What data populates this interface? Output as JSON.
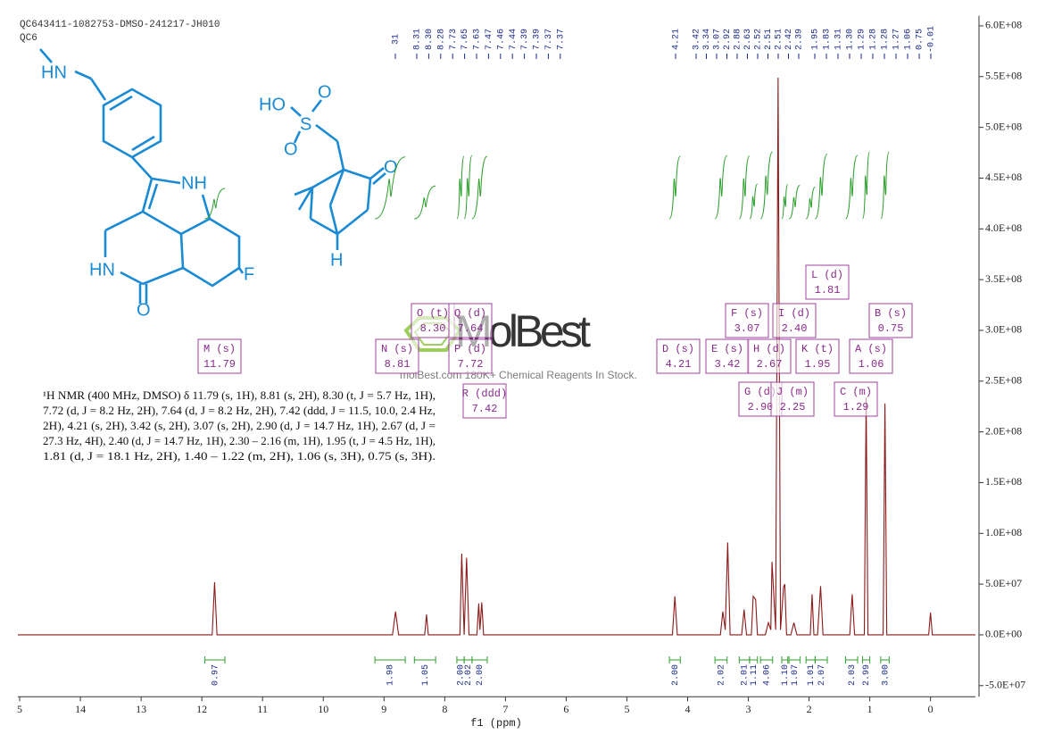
{
  "header": {
    "lines": [
      "QC643411-1082753-DMSO-241217-JH010",
      "QC6"
    ]
  },
  "watermark": {
    "brand": "MolBest",
    "tagline": "molBest.com 180K+ Chemical Reagents In Stock."
  },
  "structure": {
    "left_labels": [
      "HN",
      "NH",
      "HN",
      "O",
      "F"
    ],
    "right_labels": [
      "HO",
      "S",
      "O",
      "O",
      "O",
      "H"
    ]
  },
  "description": [
    "¹H NMR (400 MHz, DMSO) δ 11.79 (s, 1H), 8.81 (s, 2H), 8.30 (t, J = 5.7 Hz, 1H),",
    "7.72 (d, J = 8.2 Hz, 2H), 7.64 (d, J = 8.2 Hz, 2H), 7.42 (ddd, J = 11.5, 10.0, 2.4 Hz,",
    "2H), 4.21 (s, 2H), 3.42 (s, 2H), 3.07 (s, 2H), 2.90 (d, J = 14.7 Hz, 1H), 2.67 (d, J =",
    "27.3 Hz, 4H), 2.40 (d, J = 14.7 Hz, 1H), 2.30 – 2.16 (m, 1H), 1.95 (t, J = 4.5 Hz, 1H),",
    "1.81 (d, J = 18.1 Hz, 2H), 1.40 – 1.22 (m, 2H), 1.06 (s, 3H), 0.75 (s, 3H)."
  ],
  "chart_data": {
    "type": "line",
    "x_label": "f1 (ppm)",
    "color": "#8b1a1a",
    "x": [
      15.03,
      11.83,
      11.79,
      11.75,
      8.86,
      8.81,
      8.76,
      8.33,
      8.3,
      8.27,
      7.75,
      7.72,
      7.68,
      7.64,
      7.6,
      7.47,
      7.44,
      7.42,
      7.39,
      7.36,
      4.25,
      4.21,
      4.17,
      3.46,
      3.42,
      3.38,
      3.34,
      3.3,
      3.11,
      3.07,
      3.03,
      2.95,
      2.92,
      2.88,
      2.85,
      2.72,
      2.67,
      2.63,
      2.61,
      2.55,
      2.51,
      2.47,
      2.42,
      2.4,
      2.37,
      2.3,
      2.25,
      2.2,
      1.98,
      1.95,
      1.92,
      1.86,
      1.81,
      1.77,
      1.33,
      1.29,
      1.25,
      1.09,
      1.06,
      1.03,
      0.78,
      0.75,
      0.72,
      0.03,
      0,
      -0.03,
      -0.74
    ],
    "values": [
      0,
      0,
      52000000,
      0,
      0,
      23000000,
      0,
      0,
      20000000,
      0,
      0,
      80000000,
      0,
      76000000,
      0,
      0,
      31000000,
      5000000,
      32000000,
      0,
      0,
      38000000,
      0,
      0,
      23000000,
      5000000,
      91000000,
      0,
      0,
      25000000,
      0,
      0,
      38000000,
      35000000,
      0,
      0,
      12000000,
      5000000,
      72000000,
      5000000,
      549000000,
      5000000,
      47000000,
      50000000,
      0,
      0,
      12000000,
      0,
      0,
      40000000,
      0,
      0,
      48000000,
      0,
      0,
      40000000,
      0,
      0,
      234000000,
      0,
      0,
      228000000,
      0,
      0,
      22000000,
      0,
      0
    ],
    "xlim": [
      15.03,
      -0.74
    ],
    "xticks": [
      {
        "value": 15,
        "label": "5"
      },
      14,
      13,
      12,
      11,
      10,
      9,
      8,
      7,
      6,
      5,
      4,
      3,
      2,
      1,
      0
    ],
    "ylim": [
      -61000000,
      610000000
    ],
    "yticks": [
      {
        "value": -50000000,
        "label": "-5.0E+07"
      },
      {
        "value": 0,
        "label": "0.0E+00"
      },
      {
        "value": 50000000,
        "label": "5.0E+07"
      },
      {
        "value": 100000000,
        "label": "1.0E+08"
      },
      {
        "value": 150000000,
        "label": "1.5E+08"
      },
      {
        "value": 200000000,
        "label": "2.0E+08"
      },
      {
        "value": 250000000,
        "label": "2.5E+08"
      },
      {
        "value": 300000000,
        "label": "3.0E+08"
      },
      {
        "value": 350000000,
        "label": "3.5E+08"
      },
      {
        "value": 400000000,
        "label": "4.0E+08"
      },
      {
        "value": 450000000,
        "label": "4.5E+08"
      },
      {
        "value": 500000000,
        "label": "5.0E+08"
      },
      {
        "value": 550000000,
        "label": "5.5E+08"
      },
      {
        "value": 600000000,
        "label": "6.0E+08"
      }
    ],
    "peak_labels": [
      [
        "31"
      ],
      [
        "8.31",
        "8.30",
        "8.28",
        "7.73",
        "7.65",
        "7.63",
        "7.47",
        "7.46",
        "7.44",
        "7.39",
        "7.39",
        "7.37",
        "7.37"
      ],
      [
        "4.21"
      ],
      [
        "3.42",
        "3.34",
        "3.07",
        "2.92",
        "2.88",
        "2.63",
        "2.52",
        "2.51",
        "2.51",
        "2.42",
        "2.39"
      ],
      [
        "1.95",
        "1.83",
        "1.31",
        "1.30",
        "1.29",
        "1.28",
        "1.28",
        "1.27",
        "1.06",
        "0.75",
        "-0.01"
      ]
    ],
    "multiplets": [
      {
        "label": "M (s)",
        "shift": "11.79"
      },
      {
        "label": "N (s)",
        "shift": "8.81"
      },
      {
        "label": "O (t)",
        "shift": "8.30"
      },
      {
        "label": "Q (d)",
        "shift": "7.64"
      },
      {
        "label": "P (d)",
        "shift": "7.72"
      },
      {
        "label": "R (ddd)",
        "shift": "7.42"
      },
      {
        "label": "D (s)",
        "shift": "4.21"
      },
      {
        "label": "E (s)",
        "shift": "3.42"
      },
      {
        "label": "F (s)",
        "shift": "3.07"
      },
      {
        "label": "G (d)",
        "shift": "2.90"
      },
      {
        "label": "H (d)",
        "shift": "2.67"
      },
      {
        "label": "I (d)",
        "shift": "2.40"
      },
      {
        "label": "J (m)",
        "shift": "2.25"
      },
      {
        "label": "K (t)",
        "shift": "1.95"
      },
      {
        "label": "L (d)",
        "shift": "1.81"
      },
      {
        "label": "C (m)",
        "shift": "1.29"
      },
      {
        "label": "A (s)",
        "shift": "1.06"
      },
      {
        "label": "B (s)",
        "shift": "0.75"
      }
    ],
    "integrals": {
      "color": "#2e9e2e",
      "values": [
        0.97,
        1.98,
        1.05,
        2.0,
        2.02,
        2.0,
        2.0,
        2.02,
        2.01,
        1.11,
        4.06,
        1.1,
        1.07,
        1.01,
        2.07,
        2.03,
        2.99,
        3.0
      ],
      "value_labels": [
        "0.97",
        "1.98",
        "1.05",
        "2.00",
        "2.02",
        "2.00",
        "2.00",
        "2.02",
        "2.01",
        "1.11",
        "4.06",
        "1.10",
        "1.07",
        "1.01",
        "2.07",
        "2.03",
        "2.99",
        "3.00"
      ],
      "ranges": [
        [
          11.95,
          11.62
        ],
        [
          9.15,
          8.65
        ],
        [
          8.5,
          8.15
        ],
        [
          7.8,
          7.68
        ],
        [
          7.68,
          7.55
        ],
        [
          7.55,
          7.3
        ],
        [
          4.3,
          4.12
        ],
        [
          3.55,
          3.35
        ],
        [
          3.15,
          2.98
        ],
        [
          2.98,
          2.85
        ],
        [
          2.8,
          2.6
        ],
        [
          2.45,
          2.35
        ],
        [
          2.33,
          2.15
        ],
        [
          2.05,
          1.9
        ],
        [
          1.9,
          1.7
        ],
        [
          1.4,
          1.2
        ],
        [
          1.12,
          1.0
        ],
        [
          0.82,
          0.68
        ]
      ]
    }
  }
}
